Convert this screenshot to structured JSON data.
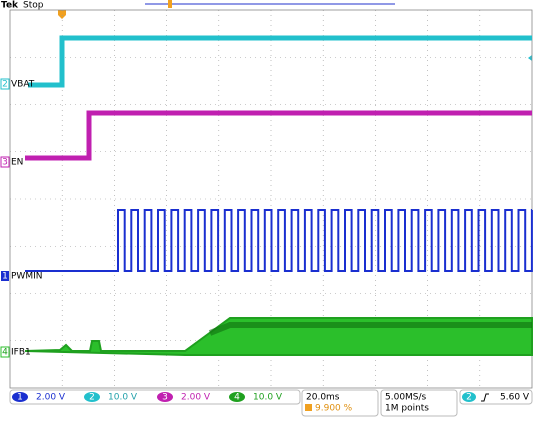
{
  "header": {
    "brand": "Tek",
    "status": "Stop"
  },
  "channels": [
    {
      "marker": "2",
      "label": "VBAT"
    },
    {
      "marker": "3",
      "label": "EN"
    },
    {
      "marker": "1",
      "label": "PWMIN"
    },
    {
      "marker": "4",
      "label": "IFB1"
    }
  ],
  "footer": {
    "scales": [
      {
        "channel": "1",
        "scale": "2.00 V"
      },
      {
        "channel": "2",
        "scale": "10.0 V"
      },
      {
        "channel": "3",
        "scale": "2.00 V"
      },
      {
        "channel": "4",
        "scale": "10.0 V"
      }
    ],
    "timebase": "20.0ms",
    "trigger_position": "9.900 %",
    "sample_rate": "5.00MS/s",
    "record_length": "1M points",
    "trigger_channel": "2",
    "trigger_level": "5.60 V"
  }
}
